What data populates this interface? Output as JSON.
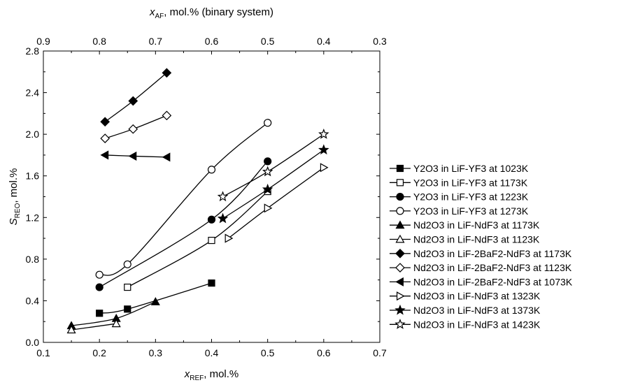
{
  "chart_data": {
    "type": "scatter",
    "xlabel": "x",
    "xlabel_sub": "REF",
    "xlabel_rest": ", mol.%",
    "ylabel": "S",
    "ylabel_sub": "REO",
    "ylabel_rest": ", mol.%",
    "top_xlabel": "x",
    "top_xlabel_sub": "AF",
    "top_xlabel_rest": ", mol.% (binary system)",
    "xlim": [
      0.1,
      0.7
    ],
    "ylim": [
      0.0,
      2.8
    ],
    "xticks": [
      "0.1",
      "0.2",
      "0.3",
      "0.4",
      "0.5",
      "0.6",
      "0.7"
    ],
    "yticks": [
      "0.0",
      "0.4",
      "0.8",
      "1.2",
      "1.6",
      "2.0",
      "2.4",
      "2.8"
    ],
    "top_xticks": [
      "0.9",
      "0.8",
      "0.7",
      "0.6",
      "0.5",
      "0.4",
      "0.3"
    ],
    "grid": false,
    "legend_position": "right",
    "series": [
      {
        "name": "Y2O3 in LiF-YF3 at 1023K",
        "marker": "square",
        "filled": true,
        "x": [
          0.2,
          0.25,
          0.4
        ],
        "y": [
          0.28,
          0.32,
          0.57
        ]
      },
      {
        "name": "Y2O3 in LiF-YF3 at 1173K",
        "marker": "square",
        "filled": false,
        "x": [
          0.25,
          0.4,
          0.5
        ],
        "y": [
          0.53,
          0.98,
          1.45
        ]
      },
      {
        "name": "Y2O3 in LiF-YF3 at 1223K",
        "marker": "circle",
        "filled": true,
        "x": [
          0.2,
          0.4,
          0.5
        ],
        "y": [
          0.53,
          1.18,
          1.74
        ]
      },
      {
        "name": "Y2O3 in LiF-YF3 at 1273K",
        "marker": "circle",
        "filled": false,
        "x": [
          0.2,
          0.25,
          0.4,
          0.5
        ],
        "y": [
          0.65,
          0.75,
          1.66,
          2.11
        ]
      },
      {
        "name": "Nd2O3 in LiF-NdF3 at 1173K",
        "marker": "triangle-up",
        "filled": true,
        "x": [
          0.15,
          0.23,
          0.3
        ],
        "y": [
          0.16,
          0.23,
          0.39
        ]
      },
      {
        "name": "Nd2O3 in LiF-NdF3 at 1123K",
        "marker": "triangle-up",
        "filled": false,
        "x": [
          0.15,
          0.23
        ],
        "y": [
          0.12,
          0.18
        ]
      },
      {
        "name": "Nd2O3 in LiF-2BaF2-NdF3 at 1173K",
        "marker": "diamond",
        "filled": true,
        "x": [
          0.21,
          0.26,
          0.32
        ],
        "y": [
          2.12,
          2.32,
          2.59
        ]
      },
      {
        "name": "Nd2O3 in LiF-2BaF2-NdF3 at 1123K",
        "marker": "diamond",
        "filled": false,
        "x": [
          0.21,
          0.26,
          0.32
        ],
        "y": [
          1.96,
          2.05,
          2.18
        ]
      },
      {
        "name": "Nd2O3 in LiF-2BaF2-NdF3 at 1073K",
        "marker": "triangle-left",
        "filled": true,
        "x": [
          0.21,
          0.26,
          0.32
        ],
        "y": [
          1.8,
          1.79,
          1.78
        ]
      },
      {
        "name": "Nd2O3 in LiF-NdF3 at 1323K",
        "marker": "triangle-right",
        "filled": false,
        "x": [
          0.43,
          0.5,
          0.6
        ],
        "y": [
          1.0,
          1.29,
          1.68
        ]
      },
      {
        "name": "Nd2O3 in LiF-NdF3 at 1373K",
        "marker": "star",
        "filled": true,
        "x": [
          0.42,
          0.5,
          0.6
        ],
        "y": [
          1.19,
          1.47,
          1.85
        ]
      },
      {
        "name": "Nd2O3 in LiF-NdF3 at 1423K",
        "marker": "star",
        "filled": false,
        "x": [
          0.42,
          0.5,
          0.6
        ],
        "y": [
          1.4,
          1.64,
          2.0
        ]
      }
    ]
  }
}
